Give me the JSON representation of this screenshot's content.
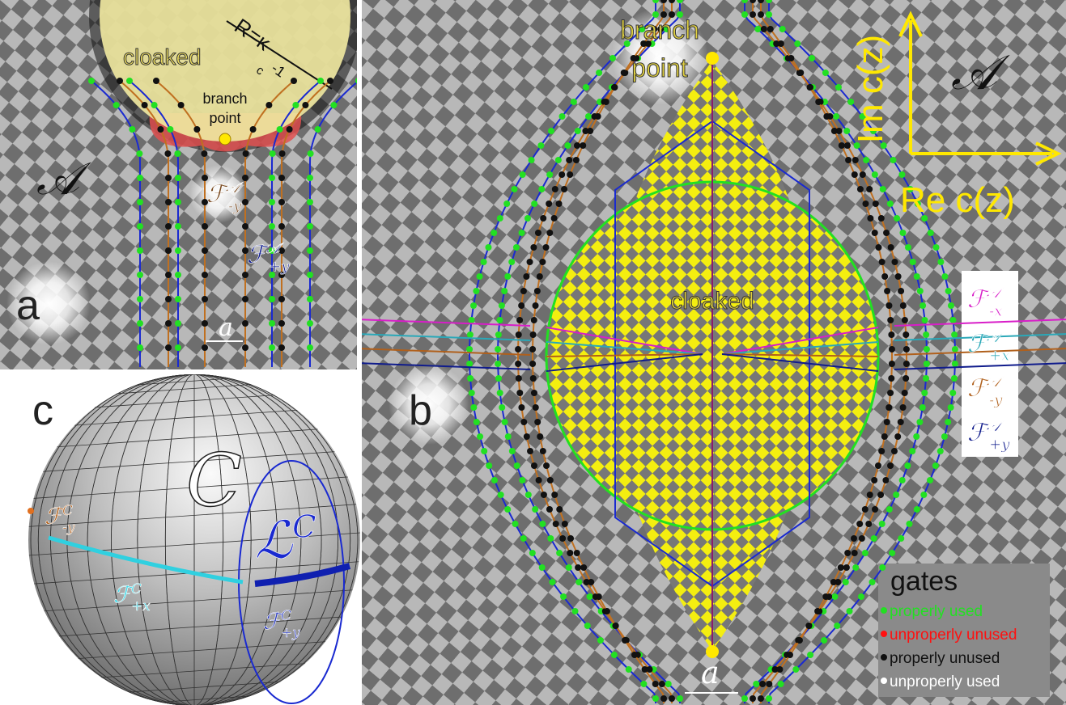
{
  "panel_a": {
    "panel_label": "a",
    "radius": {
      "base": "R=κ",
      "sub": "c",
      "sup": "-1"
    },
    "cloaked": "cloaked",
    "branch_point": [
      "branch",
      "point"
    ],
    "region": "𝒜",
    "flux_minus_y": {
      "base": "ℱ",
      "sub": "-y",
      "sup": "𝒜"
    },
    "flux_plus_y": {
      "base": "ℱ",
      "sub": "+y",
      "sup": "𝒜"
    },
    "spacing": "a"
  },
  "panel_b": {
    "panel_label": "b",
    "branch_point": [
      "branch",
      "point"
    ],
    "imag_axis": "Im c(z)",
    "real_axis": "Re c(z)",
    "region": "𝒜",
    "cloaked": "cloaked",
    "spacing": "a",
    "fluxes": [
      {
        "base": "ℱ",
        "sub": "-x",
        "sup": "𝒜",
        "color": "#d81ec8"
      },
      {
        "base": "ℱ",
        "sub": "+x",
        "sup": "𝒜",
        "color": "#2aa8b8"
      },
      {
        "base": "ℱ",
        "sub": "-y",
        "sup": "𝒜",
        "color": "#b0601c"
      },
      {
        "base": "ℱ",
        "sub": "+y",
        "sup": "𝒜",
        "color": "#101c8c"
      }
    ],
    "gates": {
      "title": "gates",
      "items": [
        {
          "label": "properly used",
          "color": "#22e022"
        },
        {
          "label": "unproperly unused",
          "color": "#ff1010"
        },
        {
          "label": "properly unused",
          "color": "#111111"
        },
        {
          "label": "unproperly used",
          "color": "#ffffff"
        }
      ]
    }
  },
  "panel_c": {
    "panel_label": "c",
    "sphere": "C",
    "loop": {
      "base": "ℒ",
      "sup": "C"
    },
    "flux_minus_y": {
      "base": "ℱ",
      "sub": "-y",
      "sup": "C"
    },
    "flux_plus_x": {
      "base": "ℱ",
      "sub": "+x",
      "sup": "C"
    },
    "flux_plus_y": {
      "base": "ℱ",
      "sub": "+y",
      "sup": "C"
    }
  }
}
